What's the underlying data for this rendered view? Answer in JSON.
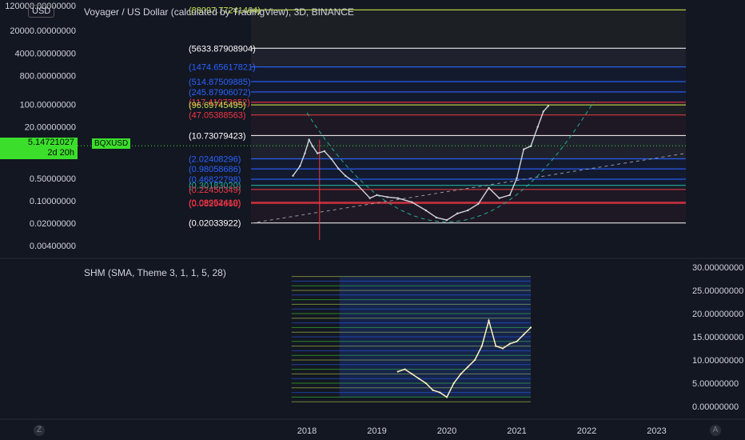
{
  "header": {
    "title": "Voyager / US Dollar (calculated by TradingView), 3D, BINANCE",
    "currency_badge": "USD",
    "indicator_title": "SHM (SMA, Theme 3, 1, 1, 5, 28)"
  },
  "price_badge": {
    "price": "5.14721027",
    "countdown": "2d 20h",
    "symbol": "BQXUSD"
  },
  "corner_buttons": {
    "left": "Z",
    "right": "A"
  },
  "colors": {
    "background": "#131722",
    "price_line": "#d1d4dc",
    "accent_green": "#3bdf2b",
    "red": "#f23645",
    "cyan": "#22ab94",
    "blue": "#2962ff",
    "yellow": "#c6e048",
    "white": "#ffffff"
  },
  "chart_data": [
    {
      "type": "line",
      "title": "Voyager / US Dollar (calculated by TradingView), 3D, BINANCE",
      "y_scale": "log",
      "y_ticks": [
        "120000.00000000",
        "20000.00000000",
        "4000.00000000",
        "800.00000000",
        "100.00000000",
        "20.00000000",
        "0.50000000",
        "0.10000000",
        "0.02000000",
        "0.00400000"
      ],
      "x_ticks": [
        "2018",
        "2019",
        "2020",
        "2021",
        "2022",
        "2023"
      ],
      "fib_levels": [
        {
          "label": "(88097.77241464)",
          "value": 88097.77241464,
          "color": "#c6e048"
        },
        {
          "label": "(5633.87908904)",
          "value": 5633.87908904,
          "color": "#ffffff"
        },
        {
          "label": "(1474.65617821)",
          "value": 1474.65617821,
          "color": "#2962ff"
        },
        {
          "label": "(514.87509885)",
          "value": 514.87509885,
          "color": "#2962ff"
        },
        {
          "label": "(245.87906072)",
          "value": 245.87906072,
          "color": "#2962ff"
        },
        {
          "label": "(117.41973652)",
          "value": 117.41973652,
          "color": "#f23645"
        },
        {
          "label": "(96.69745495)",
          "value": 96.69745495,
          "color": "#c6e048"
        },
        {
          "label": "(47.05388563)",
          "value": 47.05388563,
          "color": "#f23645"
        },
        {
          "label": "(10.73079423)",
          "value": 10.73079423,
          "color": "#ffffff"
        },
        {
          "label": "(2.02408296)",
          "value": 2.02408296,
          "color": "#2962ff"
        },
        {
          "label": "(0.98058686)",
          "value": 0.98058686,
          "color": "#2962ff"
        },
        {
          "label": "(0.46822798)",
          "value": 0.46822798,
          "color": "#2962ff"
        },
        {
          "label": "(0.30183020)",
          "value": 0.3018302,
          "color": "#22ab94"
        },
        {
          "label": "(0.22450349)",
          "value": 0.22450349,
          "color": "#f23645"
        },
        {
          "label": "(0.08952410)",
          "value": 0.0895241,
          "color": "#f23645"
        },
        {
          "label": "(0.08294668)",
          "value": 0.08294668,
          "color": "#f23645"
        },
        {
          "label": "(0.02033922)",
          "value": 0.02033922,
          "color": "#ffffff"
        }
      ],
      "series": [
        {
          "values": [
            {
              "x": 2017.8,
              "y": 0.6
            },
            {
              "x": 2017.9,
              "y": 1.2
            },
            {
              "x": 2017.97,
              "y": 3.0
            },
            {
              "x": 2018.03,
              "y": 8.0
            },
            {
              "x": 2018.08,
              "y": 5.0
            },
            {
              "x": 2018.15,
              "y": 3.0
            },
            {
              "x": 2018.25,
              "y": 3.5
            },
            {
              "x": 2018.35,
              "y": 2.0
            },
            {
              "x": 2018.45,
              "y": 1.0
            },
            {
              "x": 2018.55,
              "y": 0.6
            },
            {
              "x": 2018.7,
              "y": 0.35
            },
            {
              "x": 2018.9,
              "y": 0.12
            },
            {
              "x": 2019.0,
              "y": 0.15
            },
            {
              "x": 2019.15,
              "y": 0.13
            },
            {
              "x": 2019.3,
              "y": 0.12
            },
            {
              "x": 2019.5,
              "y": 0.09
            },
            {
              "x": 2019.7,
              "y": 0.05
            },
            {
              "x": 2019.85,
              "y": 0.03
            },
            {
              "x": 2020.0,
              "y": 0.025
            },
            {
              "x": 2020.15,
              "y": 0.04
            },
            {
              "x": 2020.3,
              "y": 0.05
            },
            {
              "x": 2020.45,
              "y": 0.08
            },
            {
              "x": 2020.6,
              "y": 0.25
            },
            {
              "x": 2020.75,
              "y": 0.12
            },
            {
              "x": 2020.9,
              "y": 0.15
            },
            {
              "x": 2021.0,
              "y": 0.5
            },
            {
              "x": 2021.1,
              "y": 4.0
            },
            {
              "x": 2021.2,
              "y": 5.0
            },
            {
              "x": 2021.3,
              "y": 20.0
            },
            {
              "x": 2021.38,
              "y": 60.0
            },
            {
              "x": 2021.45,
              "y": 90.0
            }
          ]
        }
      ]
    },
    {
      "type": "line",
      "title": "SHM (SMA, Theme 3, 1, 1, 5, 28)",
      "y_ticks": [
        "30.00000000",
        "25.00000000",
        "20.00000000",
        "15.00000000",
        "10.00000000",
        "5.00000000",
        "0.00000000"
      ],
      "ylim": [
        0,
        30
      ],
      "series": [
        {
          "values": [
            {
              "x": 2019.3,
              "y": 7.5
            },
            {
              "x": 2019.4,
              "y": 8.0
            },
            {
              "x": 2019.5,
              "y": 7.0
            },
            {
              "x": 2019.6,
              "y": 6.0
            },
            {
              "x": 2019.7,
              "y": 5.0
            },
            {
              "x": 2019.8,
              "y": 3.5
            },
            {
              "x": 2019.9,
              "y": 3.0
            },
            {
              "x": 2020.0,
              "y": 2.0
            },
            {
              "x": 2020.1,
              "y": 5.0
            },
            {
              "x": 2020.2,
              "y": 7.0
            },
            {
              "x": 2020.3,
              "y": 8.5
            },
            {
              "x": 2020.4,
              "y": 10.0
            },
            {
              "x": 2020.5,
              "y": 13.0
            },
            {
              "x": 2020.6,
              "y": 18.5
            },
            {
              "x": 2020.7,
              "y": 13.0
            },
            {
              "x": 2020.8,
              "y": 12.5
            },
            {
              "x": 2020.9,
              "y": 13.5
            },
            {
              "x": 2021.0,
              "y": 14.0
            },
            {
              "x": 2021.1,
              "y": 15.5
            },
            {
              "x": 2021.2,
              "y": 17.0
            }
          ]
        }
      ]
    }
  ]
}
